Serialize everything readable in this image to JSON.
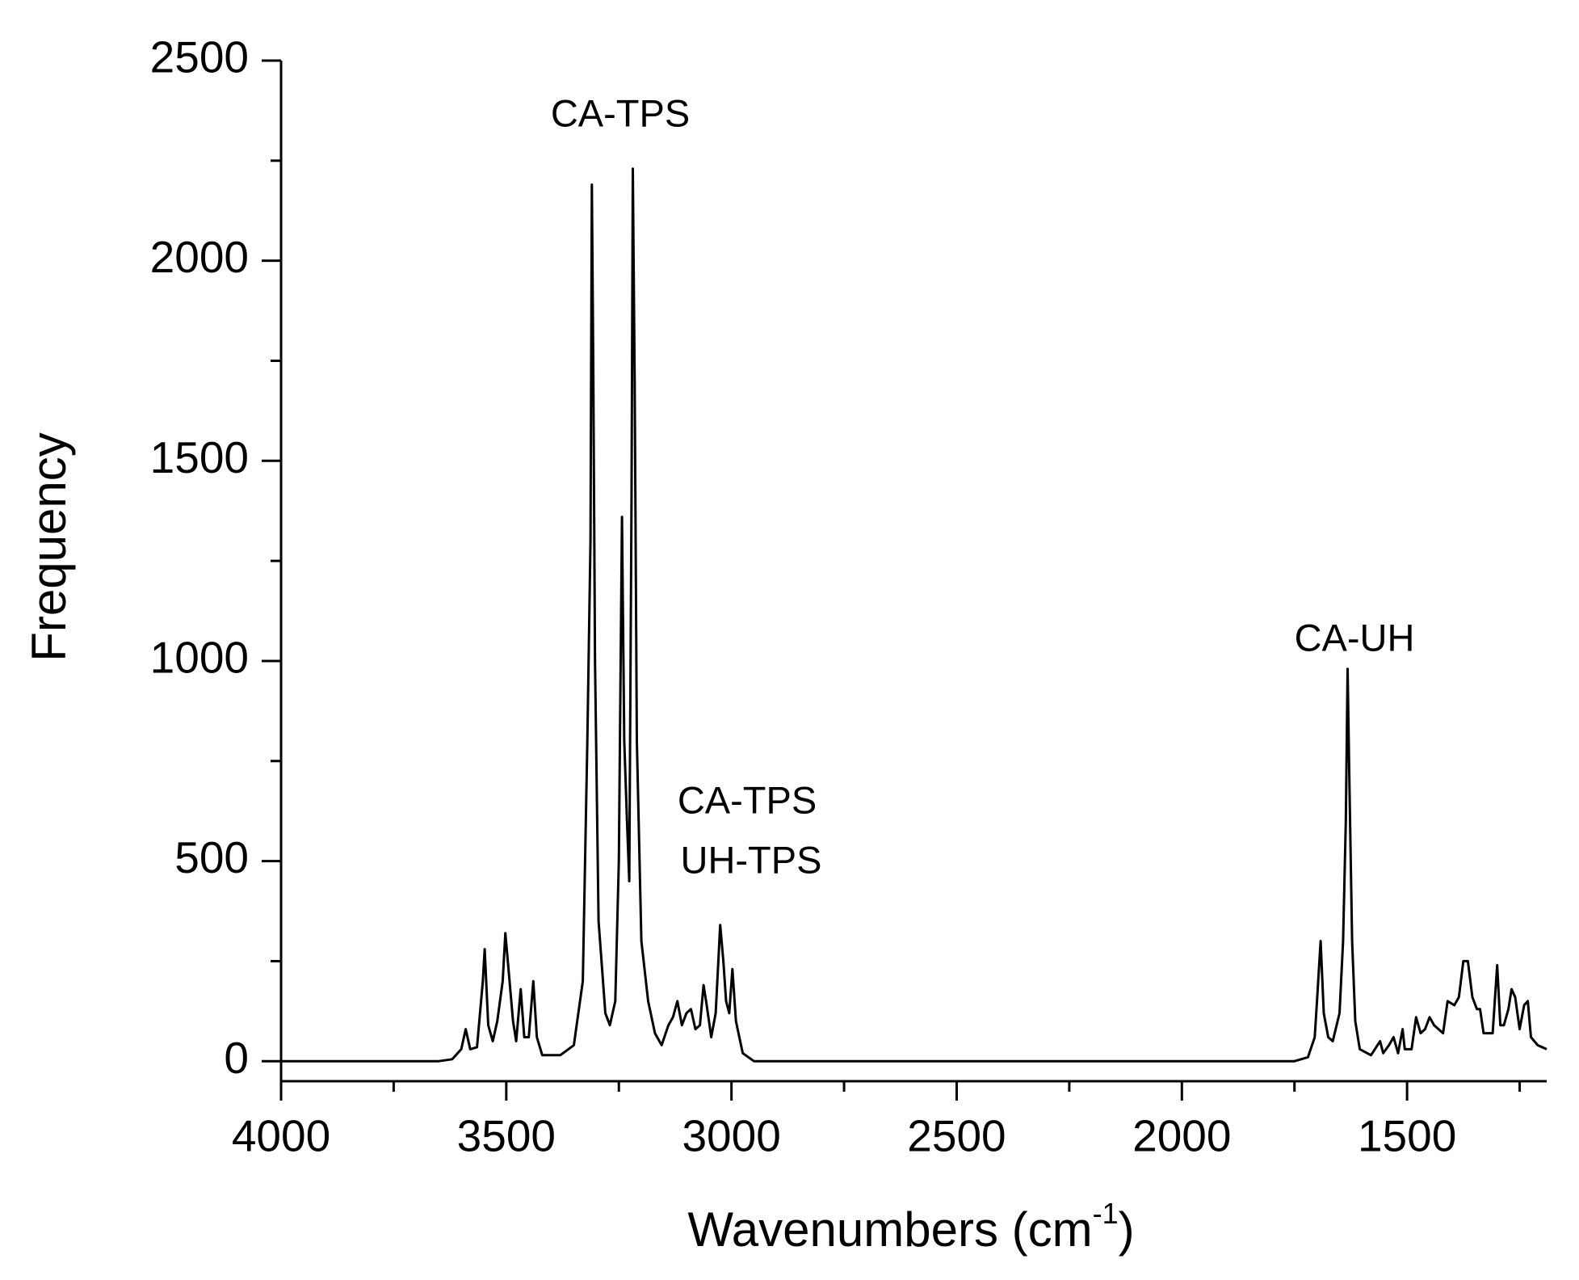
{
  "chart_data": {
    "type": "line",
    "y_label": "Frequency",
    "x_label": {
      "text": "Wavenumbers (cm",
      "superscript": "-1",
      "suffix": ")"
    },
    "annotations": [
      "CA-TPS",
      "CA-TPS",
      "UH-TPS",
      "CA-UH"
    ],
    "xlim": [
      4000,
      1190
    ],
    "ylim": [
      -50,
      2500
    ],
    "xticks": [
      4000,
      3500,
      3000,
      2500,
      2000,
      1500
    ],
    "xminorticks": [
      3750,
      3250,
      2750,
      2250,
      1750,
      1250
    ],
    "yticks": [
      0,
      500,
      1000,
      1500,
      2000,
      2500
    ],
    "yminorticks": [
      250,
      750,
      1250,
      1750,
      2250
    ],
    "series": [
      {
        "color": "#000000",
        "x": [
          4000,
          3650,
          3620,
          3600,
          3590,
          3580,
          3565,
          3552,
          3548,
          3540,
          3530,
          3520,
          3508,
          3502,
          3495,
          3485,
          3478,
          3468,
          3460,
          3450,
          3440,
          3432,
          3420,
          3380,
          3350,
          3330,
          3320,
          3313,
          3310,
          3307,
          3303,
          3295,
          3280,
          3270,
          3258,
          3250,
          3243,
          3238,
          3232,
          3227,
          3222,
          3219,
          3215,
          3210,
          3200,
          3185,
          3170,
          3155,
          3140,
          3130,
          3120,
          3110,
          3100,
          3090,
          3080,
          3070,
          3062,
          3055,
          3045,
          3035,
          3025,
          3018,
          3012,
          3005,
          2998,
          2990,
          2975,
          2950,
          1750,
          1720,
          1705,
          1700,
          1692,
          1685,
          1675,
          1665,
          1650,
          1642,
          1636,
          1632,
          1628,
          1622,
          1615,
          1605,
          1580,
          1560,
          1553,
          1540,
          1530,
          1520,
          1510,
          1505,
          1490,
          1480,
          1470,
          1460,
          1450,
          1440,
          1420,
          1410,
          1395,
          1385,
          1375,
          1365,
          1355,
          1345,
          1338,
          1330,
          1310,
          1300,
          1293,
          1285,
          1275,
          1268,
          1260,
          1250,
          1240,
          1232,
          1225,
          1210,
          1190
        ],
        "values": [
          0,
          0,
          5,
          30,
          80,
          30,
          35,
          200,
          280,
          90,
          50,
          100,
          200,
          320,
          230,
          100,
          50,
          180,
          60,
          60,
          200,
          60,
          15,
          15,
          40,
          200,
          800,
          1300,
          2190,
          1750,
          1000,
          350,
          120,
          90,
          150,
          500,
          1360,
          800,
          600,
          450,
          1400,
          2230,
          1700,
          800,
          300,
          150,
          70,
          40,
          90,
          110,
          150,
          90,
          120,
          130,
          80,
          90,
          190,
          140,
          60,
          120,
          340,
          250,
          150,
          120,
          230,
          100,
          20,
          0,
          0,
          10,
          60,
          150,
          300,
          120,
          60,
          50,
          120,
          300,
          600,
          980,
          700,
          300,
          100,
          30,
          15,
          50,
          20,
          40,
          60,
          20,
          80,
          30,
          30,
          110,
          70,
          80,
          110,
          90,
          70,
          150,
          140,
          160,
          250,
          250,
          160,
          130,
          130,
          70,
          70,
          240,
          90,
          90,
          130,
          180,
          160,
          80,
          140,
          150,
          60,
          40,
          30
        ]
      }
    ]
  }
}
